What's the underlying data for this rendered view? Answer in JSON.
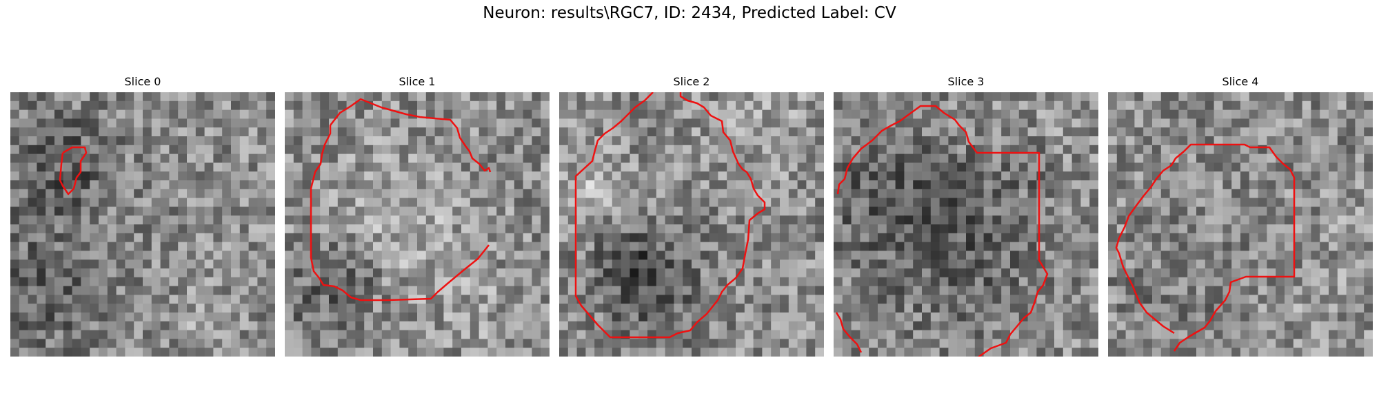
{
  "figure": {
    "title": "Neuron: results\\RGC7, ID: 2434, Predicted Label: CV"
  },
  "panels": [
    {
      "title": "Slice 0",
      "seed": 11
    },
    {
      "title": "Slice 1",
      "seed": 23
    },
    {
      "title": "Slice 2",
      "seed": 37
    },
    {
      "title": "Slice 3",
      "seed": 53
    },
    {
      "title": "Slice 4",
      "seed": 71
    }
  ],
  "colors": {
    "contour": "#ee1111"
  }
}
